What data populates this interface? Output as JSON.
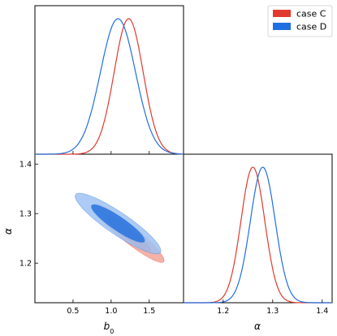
{
  "chart_data": {
    "type": "triangle-corner",
    "parameters": [
      "b0",
      "alpha"
    ],
    "axis_labels": {
      "b0": "b",
      "b0_sub": "0",
      "alpha": "α"
    },
    "ranges": {
      "b0": [
        0.0,
        1.95
      ],
      "alpha": [
        1.12,
        1.42
      ]
    },
    "ticks": {
      "b0": {
        "values": [
          0.5,
          1.0,
          1.5
        ],
        "labels": [
          "0.5",
          "1.0",
          "1.5"
        ]
      },
      "alpha_vertical": {
        "values": [
          1.2,
          1.3,
          1.4
        ],
        "labels": [
          "1.2",
          "1.3",
          "1.4"
        ]
      },
      "alpha_horizontal": {
        "values": [
          1.2,
          1.3,
          1.4
        ],
        "labels": [
          "1.2",
          "1.3",
          "1.4"
        ]
      }
    },
    "legend": {
      "placement": "top-right",
      "entries": [
        {
          "label": "case C",
          "color": "#e03a2f"
        },
        {
          "label": "case D",
          "color": "#1f6fe0"
        }
      ]
    },
    "series": [
      {
        "name": "case C",
        "color": "#e03a2f",
        "b0": {
          "mean": 1.23,
          "sigma": 0.19
        },
        "alpha": {
          "mean": 1.26,
          "sigma": 0.024
        },
        "corr": -0.93
      },
      {
        "name": "case D",
        "color": "#1f6fe0",
        "b0": {
          "mean": 1.09,
          "sigma": 0.23
        },
        "alpha": {
          "mean": 1.28,
          "sigma": 0.025
        },
        "corr": -0.9
      }
    ]
  }
}
